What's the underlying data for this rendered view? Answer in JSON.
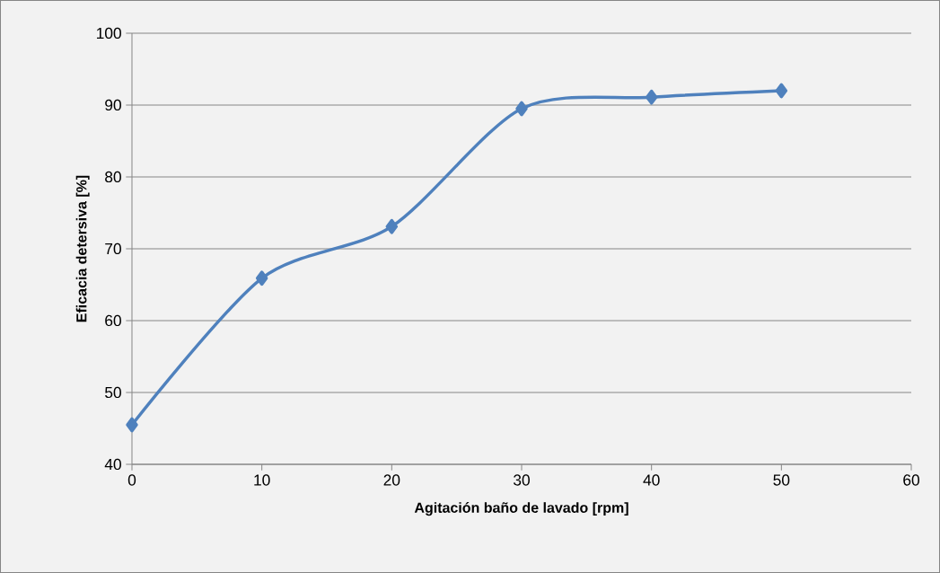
{
  "chart_data": {
    "type": "line",
    "xlabel": "Agitación baño de lavado [rpm]",
    "ylabel": "Eficacia detersiva [%]",
    "x": [
      0,
      10,
      20,
      30,
      40,
      50
    ],
    "series": [
      {
        "color": "#4f81bd",
        "values": [
          45.5,
          65.9,
          73.1,
          89.5,
          91.1,
          92.0
        ]
      }
    ],
    "xlim": [
      0,
      60
    ],
    "xticks": [
      0,
      10,
      20,
      30,
      40,
      50,
      60
    ],
    "ylim": [
      40,
      100
    ],
    "yticks": [
      40,
      50,
      60,
      70,
      80,
      90,
      100
    ],
    "grid": "y",
    "marker": "diamond",
    "line_style": "solid"
  }
}
